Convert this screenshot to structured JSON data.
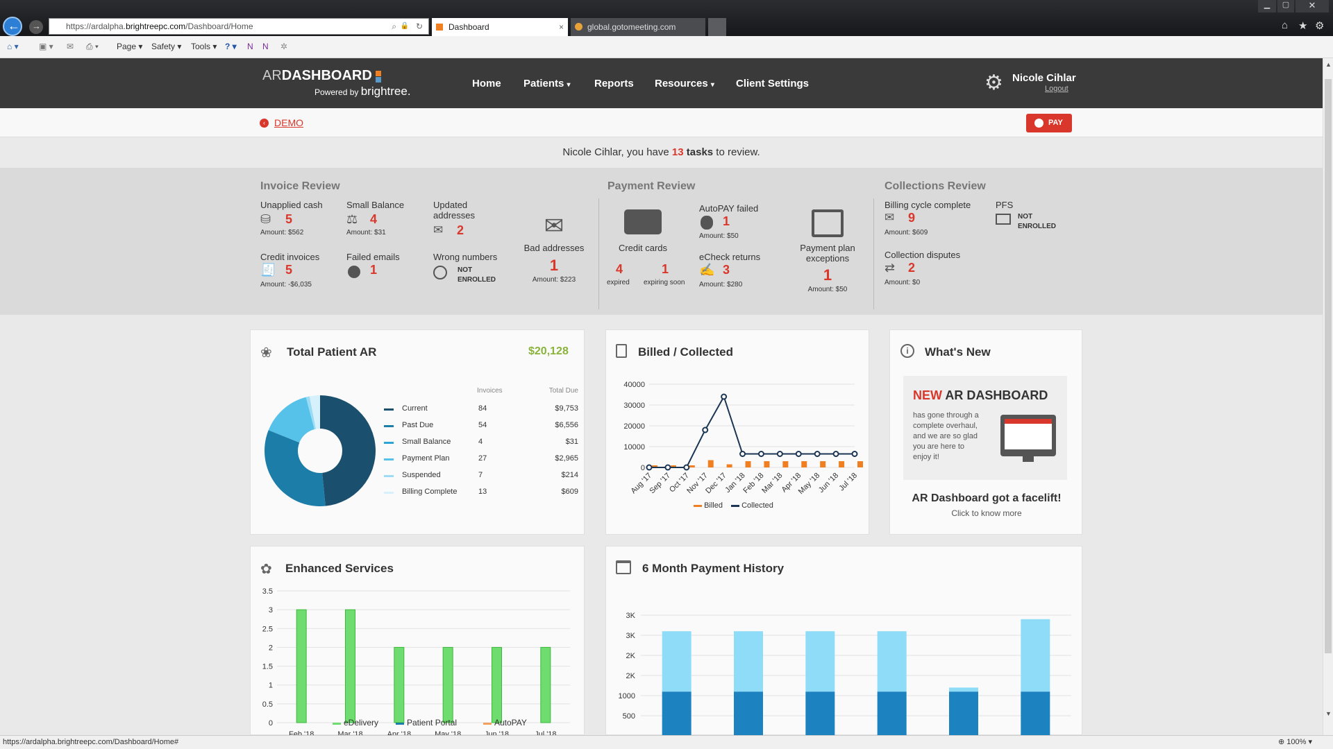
{
  "browser": {
    "url_prefix": "https://ardalpha.",
    "url_domain": "brightreepc.com",
    "url_path": "/Dashboard/Home",
    "tabs": [
      {
        "label": "Dashboard"
      },
      {
        "label": "global.gotomeeting.com"
      }
    ],
    "toolbar": {
      "page": "Page",
      "safety": "Safety",
      "tools": "Tools"
    }
  },
  "app": {
    "logo_ar": "AR",
    "logo_dash": "DASHBOARD",
    "powered": "Powered by",
    "brand": "brightree.",
    "nav": [
      "Home",
      "Patients",
      "Reports",
      "Resources",
      "Client Settings"
    ],
    "user_name": "Nicole Cihlar",
    "logout": "Logout",
    "demo": "DEMO",
    "pay": "PAY",
    "task_pre": "Nicole Cihlar, you have ",
    "task_count": "13",
    "task_word": "tasks",
    "task_post": " to review."
  },
  "invoice_review": {
    "title": "Invoice Review",
    "unapplied": {
      "label": "Unapplied cash",
      "count": "5",
      "amount": "Amount: $562"
    },
    "small_balance": {
      "label": "Small Balance",
      "count": "4",
      "amount": "Amount: $31"
    },
    "updated": {
      "label1": "Updated",
      "label2": "addresses",
      "count": "2"
    },
    "credit": {
      "label": "Credit invoices",
      "count": "5",
      "amount": "Amount: -$6,035"
    },
    "failed_emails": {
      "label": "Failed emails",
      "count": "1"
    },
    "wrong_numbers": {
      "label": "Wrong numbers",
      "s1": "NOT",
      "s2": "ENROLLED"
    },
    "bad_addresses": {
      "label": "Bad addresses",
      "count": "1",
      "amount": "Amount: $223"
    }
  },
  "payment_review": {
    "title": "Payment Review",
    "credit_cards": {
      "label": "Credit cards",
      "expired": "4",
      "expired_label": "expired",
      "expiring": "1",
      "expiring_label": "expiring soon"
    },
    "autopay": {
      "label": "AutoPAY failed",
      "count": "1",
      "amount": "Amount: $50"
    },
    "echeck": {
      "label": "eCheck returns",
      "count": "3",
      "amount": "Amount: $280"
    },
    "plan": {
      "label1": "Payment plan",
      "label2": "exceptions",
      "count": "1",
      "amount": "Amount: $50"
    }
  },
  "collections_review": {
    "title": "Collections Review",
    "billing": {
      "label": "Billing cycle complete",
      "count": "9",
      "amount": "Amount: $609"
    },
    "pfs": {
      "label": "PFS",
      "s1": "NOT",
      "s2": "ENROLLED"
    },
    "disputes": {
      "label": "Collection disputes",
      "count": "2",
      "amount": "Amount: $0"
    }
  },
  "patient_ar": {
    "title": "Total Patient AR",
    "total": "$20,128",
    "col_invoices": "Invoices",
    "col_due": "Total Due",
    "rows": [
      {
        "name": "Current",
        "invoices": "84",
        "due": "$9,753",
        "color": "#1a4f6e"
      },
      {
        "name": "Past Due",
        "invoices": "54",
        "due": "$6,556",
        "color": "#1c7da8"
      },
      {
        "name": "Small Balance",
        "invoices": "4",
        "due": "$31",
        "color": "#2aa6d4"
      },
      {
        "name": "Payment Plan",
        "invoices": "27",
        "due": "$2,965",
        "color": "#56c2ea"
      },
      {
        "name": "Suspended",
        "invoices": "7",
        "due": "$214",
        "color": "#9bdcf4"
      },
      {
        "name": "Billing Complete",
        "invoices": "13",
        "due": "$609",
        "color": "#d6f1fb"
      }
    ]
  },
  "whats_new": {
    "title": "What's New",
    "new": "NEW",
    "heading": " AR DASHBOARD",
    "body": [
      "has gone through a",
      "complete overhaul,",
      "and we are so glad",
      "you are here to",
      "enjoy it!"
    ],
    "facelift": "AR Dashboard got a facelift!",
    "click": "Click to know more"
  },
  "chart_data": [
    {
      "type": "line",
      "title": "Billed / Collected",
      "categories": [
        "Aug '17",
        "Sep '17",
        "Oct '17",
        "Nov '17",
        "Dec '17",
        "Jan '18",
        "Feb '18",
        "Mar '18",
        "Apr '18",
        "May '18",
        "Jun '18",
        "Jul '18"
      ],
      "series": [
        {
          "name": "Billed",
          "type": "bar",
          "color": "#f07f22",
          "values": [
            1000,
            1000,
            1000,
            3500,
            1500,
            3000,
            3000,
            3000,
            3000,
            3000,
            3000,
            3000
          ]
        },
        {
          "name": "Collected",
          "type": "line",
          "color": "#1b3554",
          "values": [
            0,
            0,
            0,
            18000,
            34000,
            6500,
            6500,
            6500,
            6500,
            6500,
            6500,
            6500
          ]
        }
      ],
      "yticks": [
        "0",
        "10000",
        "20000",
        "30000",
        "40000"
      ],
      "ylim": [
        0,
        40000
      ]
    },
    {
      "type": "bar",
      "title": "Enhanced Services",
      "categories": [
        "Feb '18",
        "Mar '18",
        "Apr '18",
        "May '18",
        "Jun '18",
        "Jul '18"
      ],
      "series": [
        {
          "name": "eDelivery",
          "color": "#6fdc6f",
          "values": [
            3,
            3,
            2,
            2,
            2,
            2
          ]
        },
        {
          "name": "Patient Portal",
          "color": "#1c7da8",
          "values": [
            0,
            0,
            0,
            0,
            0,
            0
          ]
        },
        {
          "name": "AutoPAY",
          "color": "#f0a060",
          "values": [
            0,
            0,
            0,
            0,
            0,
            0
          ]
        }
      ],
      "yticks": [
        "0",
        "0.5",
        "1",
        "1.5",
        "2",
        "2.5",
        "3",
        "3.5"
      ],
      "ylim": [
        0,
        3.5
      ]
    },
    {
      "type": "bar",
      "title": "6 Month Payment History",
      "stacked": true,
      "series": [
        {
          "color": "#1c82c0",
          "values": [
            1100,
            1100,
            1100,
            1100,
            1100,
            1100
          ]
        },
        {
          "color": "#8fdcf8",
          "values": [
            1500,
            1500,
            1500,
            1500,
            100,
            1800
          ]
        }
      ],
      "yticks": [
        "500",
        "1000",
        "2K",
        "2K",
        "3K",
        "3K"
      ],
      "ylim": [
        0,
        3500
      ]
    }
  ],
  "status_bar": {
    "url": "https://ardalpha.brightreepc.com/Dashboard/Home#",
    "zoom": "100%"
  }
}
